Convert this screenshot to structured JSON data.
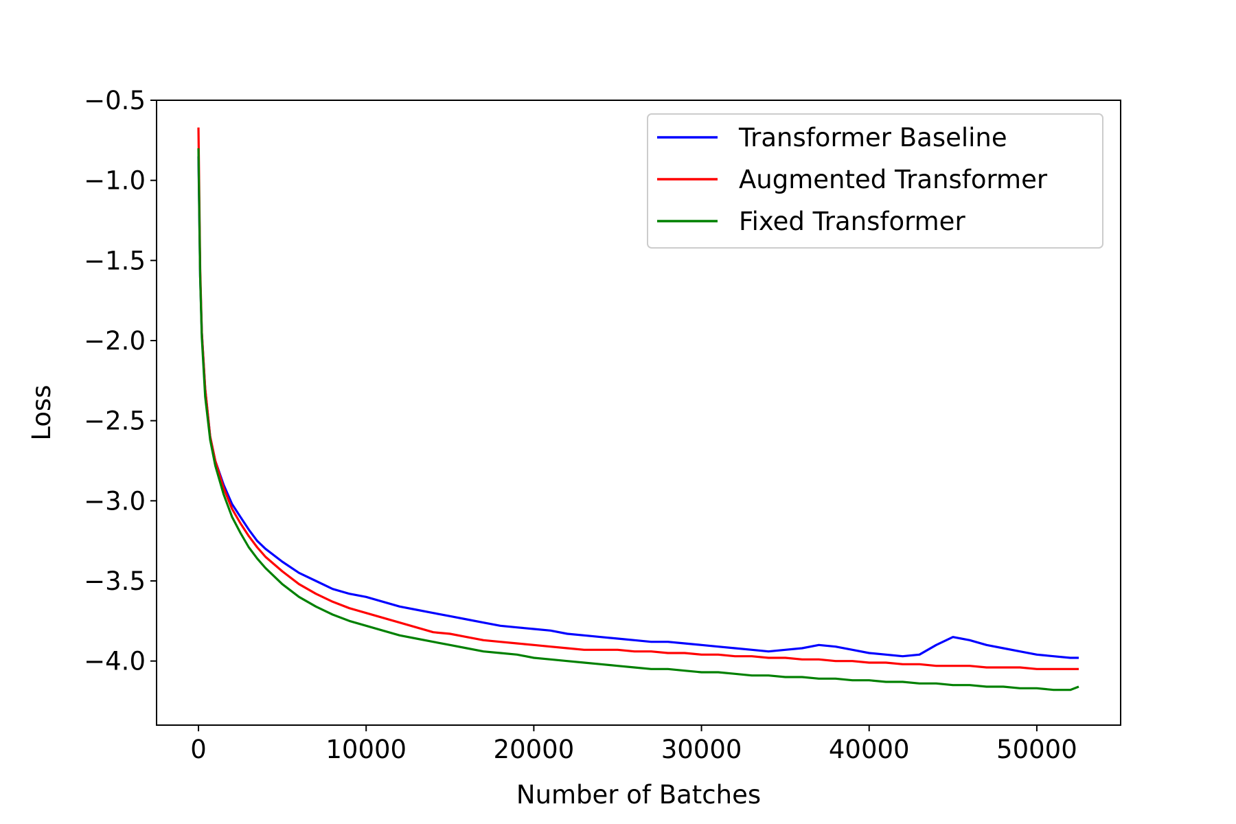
{
  "chart_data": {
    "type": "line",
    "title": "",
    "xlabel": "Number of Batches",
    "ylabel": "Loss",
    "xlim": [
      -2500,
      55000
    ],
    "ylim": [
      -4.4,
      -0.5
    ],
    "xticks": [
      0,
      10000,
      20000,
      30000,
      40000,
      50000
    ],
    "xtick_labels": [
      "0",
      "10000",
      "20000",
      "30000",
      "40000",
      "50000"
    ],
    "yticks": [
      -0.5,
      -1.0,
      -1.5,
      -2.0,
      -2.5,
      -3.0,
      -3.5,
      -4.0
    ],
    "ytick_labels": [
      "−0.5",
      "−1.0",
      "−1.5",
      "−2.0",
      "−2.5",
      "−3.0",
      "−3.5",
      "−4.0"
    ],
    "grid": false,
    "legend_position": "top-right",
    "series": [
      {
        "name": "Transformer Baseline",
        "color": "#0000ff",
        "x": [
          0,
          100,
          200,
          400,
          700,
          1000,
          1500,
          2000,
          2500,
          3000,
          3500,
          4000,
          5000,
          6000,
          7000,
          8000,
          9000,
          10000,
          11000,
          12000,
          13000,
          14000,
          15000,
          16000,
          17000,
          18000,
          19000,
          20000,
          21000,
          22000,
          23000,
          24000,
          25000,
          26000,
          27000,
          28000,
          29000,
          30000,
          31000,
          32000,
          33000,
          34000,
          35000,
          36000,
          37000,
          38000,
          39000,
          40000,
          41000,
          42000,
          43000,
          44000,
          45000,
          46000,
          47000,
          48000,
          49000,
          50000,
          51000,
          52000,
          52500
        ],
        "y": [
          -0.85,
          -1.6,
          -1.95,
          -2.3,
          -2.6,
          -2.75,
          -2.9,
          -3.02,
          -3.1,
          -3.18,
          -3.25,
          -3.3,
          -3.38,
          -3.45,
          -3.5,
          -3.55,
          -3.58,
          -3.6,
          -3.63,
          -3.66,
          -3.68,
          -3.7,
          -3.72,
          -3.74,
          -3.76,
          -3.78,
          -3.79,
          -3.8,
          -3.81,
          -3.83,
          -3.84,
          -3.85,
          -3.86,
          -3.87,
          -3.88,
          -3.88,
          -3.89,
          -3.9,
          -3.91,
          -3.92,
          -3.93,
          -3.94,
          -3.93,
          -3.92,
          -3.9,
          -3.91,
          -3.93,
          -3.95,
          -3.96,
          -3.97,
          -3.96,
          -3.9,
          -3.85,
          -3.87,
          -3.9,
          -3.92,
          -3.94,
          -3.96,
          -3.97,
          -3.98,
          -3.98
        ]
      },
      {
        "name": "Augmented Transformer",
        "color": "#ff0000",
        "x": [
          0,
          100,
          200,
          400,
          700,
          1000,
          1500,
          2000,
          2500,
          3000,
          3500,
          4000,
          5000,
          6000,
          7000,
          8000,
          9000,
          10000,
          11000,
          12000,
          13000,
          14000,
          15000,
          16000,
          17000,
          18000,
          19000,
          20000,
          21000,
          22000,
          23000,
          24000,
          25000,
          26000,
          27000,
          28000,
          29000,
          30000,
          31000,
          32000,
          33000,
          34000,
          35000,
          36000,
          37000,
          38000,
          39000,
          40000,
          41000,
          42000,
          43000,
          44000,
          45000,
          46000,
          47000,
          48000,
          49000,
          50000,
          51000,
          52000,
          52500
        ],
        "y": [
          -0.67,
          -1.55,
          -1.95,
          -2.3,
          -2.6,
          -2.75,
          -2.92,
          -3.05,
          -3.14,
          -3.22,
          -3.29,
          -3.35,
          -3.44,
          -3.52,
          -3.58,
          -3.63,
          -3.67,
          -3.7,
          -3.73,
          -3.76,
          -3.79,
          -3.82,
          -3.83,
          -3.85,
          -3.87,
          -3.88,
          -3.89,
          -3.9,
          -3.91,
          -3.92,
          -3.93,
          -3.93,
          -3.93,
          -3.94,
          -3.94,
          -3.95,
          -3.95,
          -3.96,
          -3.96,
          -3.97,
          -3.97,
          -3.98,
          -3.98,
          -3.99,
          -3.99,
          -4.0,
          -4.0,
          -4.01,
          -4.01,
          -4.02,
          -4.02,
          -4.03,
          -4.03,
          -4.03,
          -4.04,
          -4.04,
          -4.04,
          -4.05,
          -4.05,
          -4.05,
          -4.05
        ]
      },
      {
        "name": "Fixed Transformer",
        "color": "#008000",
        "x": [
          0,
          100,
          200,
          400,
          700,
          1000,
          1500,
          2000,
          2500,
          3000,
          3500,
          4000,
          5000,
          6000,
          7000,
          8000,
          9000,
          10000,
          11000,
          12000,
          13000,
          14000,
          15000,
          16000,
          17000,
          18000,
          19000,
          20000,
          21000,
          22000,
          23000,
          24000,
          25000,
          26000,
          27000,
          28000,
          29000,
          30000,
          31000,
          32000,
          33000,
          34000,
          35000,
          36000,
          37000,
          38000,
          39000,
          40000,
          41000,
          42000,
          43000,
          44000,
          45000,
          46000,
          47000,
          48000,
          49000,
          50000,
          51000,
          52000,
          52500
        ],
        "y": [
          -0.8,
          -1.6,
          -1.98,
          -2.35,
          -2.62,
          -2.78,
          -2.96,
          -3.1,
          -3.2,
          -3.29,
          -3.36,
          -3.42,
          -3.52,
          -3.6,
          -3.66,
          -3.71,
          -3.75,
          -3.78,
          -3.81,
          -3.84,
          -3.86,
          -3.88,
          -3.9,
          -3.92,
          -3.94,
          -3.95,
          -3.96,
          -3.98,
          -3.99,
          -4.0,
          -4.01,
          -4.02,
          -4.03,
          -4.04,
          -4.05,
          -4.05,
          -4.06,
          -4.07,
          -4.07,
          -4.08,
          -4.09,
          -4.09,
          -4.1,
          -4.1,
          -4.11,
          -4.11,
          -4.12,
          -4.12,
          -4.13,
          -4.13,
          -4.14,
          -4.14,
          -4.15,
          -4.15,
          -4.16,
          -4.16,
          -4.17,
          -4.17,
          -4.18,
          -4.18,
          -4.16
        ]
      }
    ]
  }
}
